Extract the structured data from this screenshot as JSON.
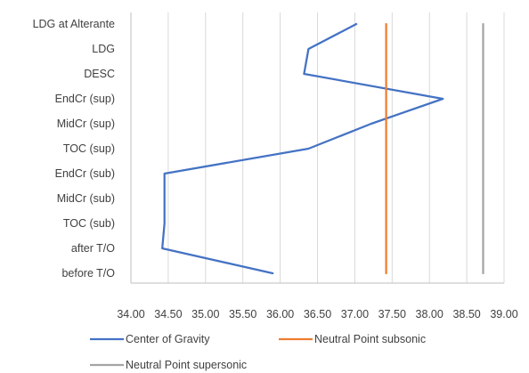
{
  "chart_data": {
    "type": "line",
    "orientation": "horizontal",
    "categories": [
      "LDG at Alterante",
      "LDG",
      "DESC",
      "EndCr (sup)",
      "MidCr (sup)",
      "TOC (sup)",
      "EndCr (sub)",
      "MidCr (sub)",
      "TOC (sub)",
      "after T/O",
      "before T/O"
    ],
    "x_ticks": [
      "34.00",
      "34.50",
      "35.00",
      "35.50",
      "36.00",
      "36.50",
      "37.00",
      "37.50",
      "38.00",
      "38.50",
      "39.00"
    ],
    "xlim": [
      34.0,
      39.0
    ],
    "grid": "vertical",
    "legend_position": "bottom",
    "series": [
      {
        "name": "Center of Gravity",
        "color": "#4472C4",
        "values": [
          37.02,
          36.38,
          36.32,
          38.18,
          37.22,
          36.38,
          34.45,
          34.45,
          34.45,
          34.42,
          35.9
        ]
      },
      {
        "name": "Neutral Point subsonic",
        "color": "#ED7D31",
        "values": [
          37.42,
          37.42,
          37.42,
          37.42,
          37.42,
          37.42,
          37.42,
          37.42,
          37.42,
          37.42,
          37.42
        ]
      },
      {
        "name": "Neutral Point supersonic",
        "color": "#A5A5A5",
        "values": [
          38.72,
          38.72,
          38.72,
          38.72,
          38.72,
          38.72,
          38.72,
          38.72,
          38.72,
          38.72,
          38.72
        ]
      }
    ]
  },
  "colors": {
    "gridline": "#D9D9D9",
    "axis_line": "#BFBFBF",
    "text": "#404040"
  }
}
